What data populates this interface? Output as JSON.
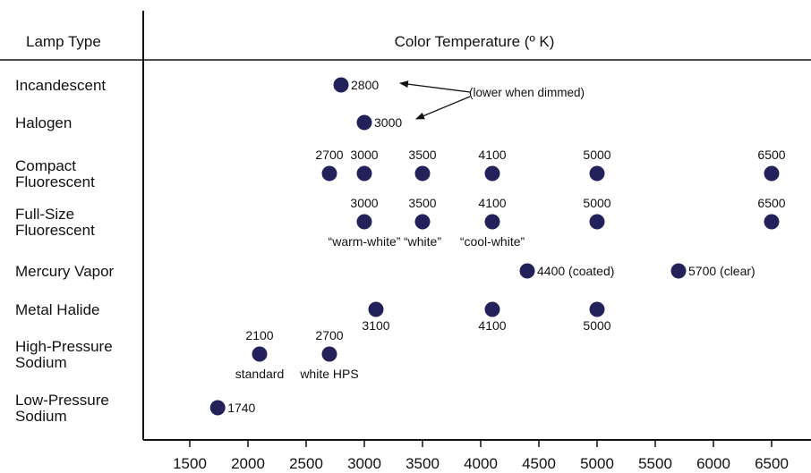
{
  "chart_data": {
    "type": "scatter",
    "header": {
      "lamp_type": "Lamp Type",
      "color_temperature": "Color Temperature (º K)"
    },
    "x_ticks": [
      "1500",
      "2000",
      "2500",
      "3000",
      "3500",
      "4000",
      "4500",
      "5000",
      "5500",
      "6000",
      "6500"
    ],
    "xlim": [
      1500,
      6500
    ],
    "lamp_types": [
      {
        "lines": [
          "Incandescent"
        ]
      },
      {
        "lines": [
          "Halogen"
        ]
      },
      {
        "lines": [
          "Compact",
          "Fluorescent"
        ]
      },
      {
        "lines": [
          "Full-Size",
          "Fluorescent"
        ]
      },
      {
        "lines": [
          "Mercury Vapor"
        ]
      },
      {
        "lines": [
          "Metal Halide"
        ]
      },
      {
        "lines": [
          "High-Pressure",
          "Sodium"
        ]
      },
      {
        "lines": [
          "Low-Pressure",
          "Sodium"
        ]
      }
    ],
    "points": [
      {
        "row": 0,
        "x": 2800,
        "label": "2800",
        "label_pos": "right"
      },
      {
        "row": 1,
        "x": 3000,
        "label": "3000",
        "label_pos": "right"
      },
      {
        "row": 2,
        "x": 2700,
        "label": "2700",
        "label_pos": "above"
      },
      {
        "row": 2,
        "x": 3000,
        "label": "3000",
        "label_pos": "above"
      },
      {
        "row": 2,
        "x": 3500,
        "label": "3500",
        "label_pos": "above"
      },
      {
        "row": 2,
        "x": 4100,
        "label": "4100",
        "label_pos": "above"
      },
      {
        "row": 2,
        "x": 5000,
        "label": "5000",
        "label_pos": "above"
      },
      {
        "row": 2,
        "x": 6500,
        "label": "6500",
        "label_pos": "above"
      },
      {
        "row": 3,
        "x": 3000,
        "label": "3000",
        "label_pos": "above",
        "sublabel": "“warm-white”"
      },
      {
        "row": 3,
        "x": 3500,
        "label": "3500",
        "label_pos": "above",
        "sublabel": "“white”"
      },
      {
        "row": 3,
        "x": 4100,
        "label": "4100",
        "label_pos": "above",
        "sublabel": "“cool-white”"
      },
      {
        "row": 3,
        "x": 5000,
        "label": "5000",
        "label_pos": "above"
      },
      {
        "row": 3,
        "x": 6500,
        "label": "6500",
        "label_pos": "above"
      },
      {
        "row": 4,
        "x": 4400,
        "label": "4400 (coated)",
        "label_pos": "right"
      },
      {
        "row": 4,
        "x": 5700,
        "label": "5700 (clear)",
        "label_pos": "right"
      },
      {
        "row": 5,
        "x": 3100,
        "label": "3100",
        "label_pos": "below"
      },
      {
        "row": 5,
        "x": 4100,
        "label": "4100",
        "label_pos": "below"
      },
      {
        "row": 5,
        "x": 5000,
        "label": "5000",
        "label_pos": "below"
      },
      {
        "row": 6,
        "x": 2100,
        "label": "2100",
        "label_pos": "above",
        "sublabel": "standard"
      },
      {
        "row": 6,
        "x": 2700,
        "label": "2700",
        "label_pos": "above",
        "sublabel": "white HPS"
      },
      {
        "row": 7,
        "x": 1740,
        "label": "1740",
        "label_pos": "right"
      }
    ],
    "annotation": {
      "text": "(lower when dimmed)",
      "points_to": [
        "Incandescent 2800",
        "Halogen 3000"
      ]
    },
    "colors": {
      "marker": "#22215a",
      "text": "#111111",
      "axis": "#111111"
    }
  }
}
